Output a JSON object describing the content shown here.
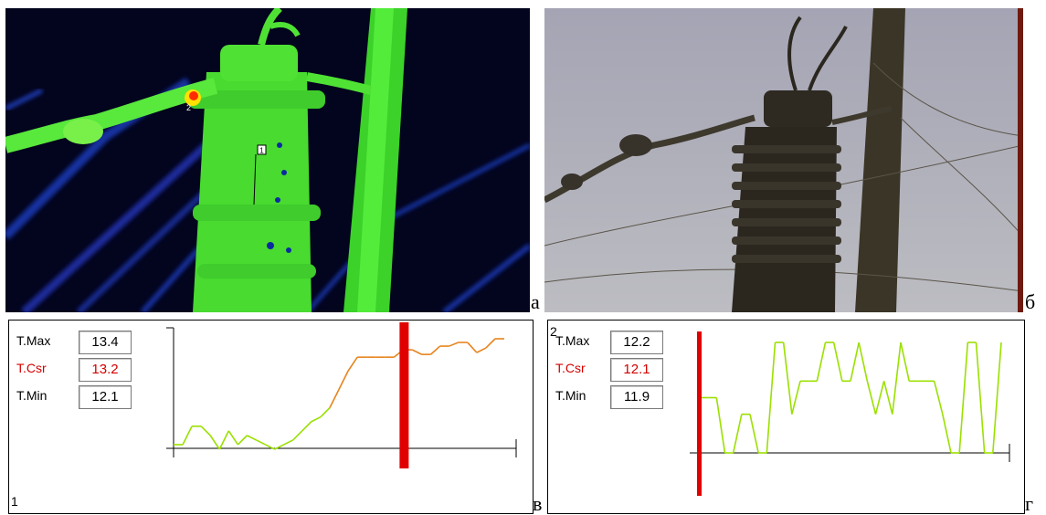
{
  "panels": {
    "a": {
      "letter": "а",
      "marker_1": "1",
      "marker_2": "2"
    },
    "b": {
      "letter": "б"
    },
    "c": {
      "letter": "в",
      "corner_label": "1",
      "tmax_label": "T.Max",
      "tmax_value": "13.4",
      "tcsr_label": "T.Csr",
      "tcsr_value": "13.2",
      "tmin_label": "T.Min",
      "tmin_value": "12.1"
    },
    "d": {
      "letter": "г",
      "corner_label": "2",
      "tmax_label": "T.Max",
      "tmax_value": "12.2",
      "tcsr_label": "T.Csr",
      "tcsr_value": "12.1",
      "tmin_label": "T.Min",
      "tmin_value": "11.9"
    }
  },
  "chart_data": [
    {
      "type": "line",
      "x": [
        0,
        1,
        2,
        3,
        4,
        5,
        6,
        7,
        8,
        9,
        10,
        11,
        12,
        13,
        14,
        15,
        16,
        17,
        18,
        19,
        20,
        21,
        22,
        23,
        24,
        25,
        26,
        27,
        28,
        29,
        30,
        31,
        32,
        33,
        34,
        35,
        36
      ],
      "values": [
        0.05,
        0.05,
        0.25,
        0.25,
        0.15,
        0.0,
        0.2,
        0.05,
        0.15,
        0.1,
        0.05,
        0.0,
        0.05,
        0.1,
        0.2,
        0.3,
        0.35,
        0.45,
        0.65,
        0.85,
        1.0,
        1.0,
        1.0,
        1.0,
        1.0,
        1.08,
        1.08,
        1.03,
        1.03,
        1.12,
        1.12,
        1.16,
        1.16,
        1.05,
        1.1,
        1.2,
        1.2
      ],
      "marker_index": 25,
      "colors": {
        "low": "#9be000",
        "high": "#e8841e",
        "marker": "#e00000"
      }
    },
    {
      "type": "line",
      "x": [
        0,
        1,
        2,
        3,
        4,
        5,
        6,
        7,
        8,
        9,
        10,
        11,
        12,
        13,
        14,
        15,
        16,
        17,
        18,
        19,
        20,
        21,
        22,
        23,
        24,
        25,
        26,
        27,
        28,
        29,
        30,
        31,
        32,
        33,
        34,
        35,
        36
      ],
      "values": [
        0.5,
        0.5,
        0.5,
        0.0,
        0.0,
        0.35,
        0.35,
        0.0,
        0.0,
        1.0,
        1.0,
        0.35,
        0.65,
        0.65,
        0.65,
        1.0,
        1.0,
        0.65,
        0.65,
        1.0,
        0.65,
        0.35,
        0.65,
        0.35,
        1.0,
        0.65,
        0.65,
        0.65,
        0.65,
        0.35,
        0.0,
        0.0,
        1.0,
        1.0,
        0.0,
        0.0,
        1.0
      ],
      "marker_index": 0,
      "colors": {
        "line": "#9be000",
        "marker": "#e00000"
      }
    }
  ]
}
